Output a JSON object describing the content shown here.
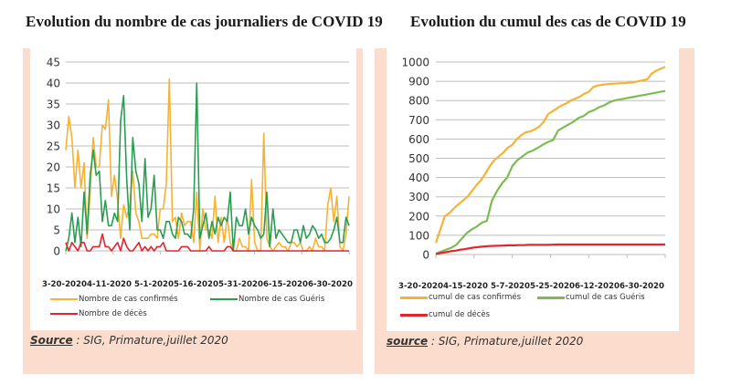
{
  "colors": {
    "confirmed": "#f5b335",
    "recovered_daily": "#2a9d53",
    "recovered_cumul": "#7dbb53",
    "deaths": "#e0262e",
    "grid": "#bdbdbd",
    "panel_bg": "#fbdccd"
  },
  "chart_data": [
    {
      "type": "line",
      "title": "Evolution du nombre de cas journaliers de COVID 19",
      "xlabel": "",
      "ylabel": "",
      "ylim": [
        0,
        45
      ],
      "yticks": [
        "0",
        "5",
        "10",
        "15",
        "20",
        "25",
        "30",
        "35",
        "40",
        "45"
      ],
      "xtick_labels": [
        "3-20-2020",
        "4-11-2020",
        "5-1-2020",
        "5-16-2020",
        "5-31-2020",
        "6-15-2020",
        "6-30-2020"
      ],
      "xtick_label_text": "3-20-20204-11-2020  5-1-20205-16-20205-31-20206-15-20206-30-2020",
      "grid": true,
      "legend_position": "bottom",
      "series": [
        {
          "name": "Nombre de cas confirmés",
          "color_key": "confirmed",
          "values": [
            24,
            32,
            27,
            15,
            24,
            15,
            21,
            3,
            14,
            27,
            20,
            20,
            30,
            29,
            36,
            13,
            18,
            12,
            3,
            11,
            8,
            11,
            19,
            9,
            7,
            3,
            3,
            3,
            4,
            4,
            3,
            10,
            10,
            16,
            41,
            7,
            8,
            3,
            9,
            6,
            7,
            7,
            2,
            14,
            0,
            10,
            5,
            5,
            3,
            13,
            2,
            8,
            2,
            8,
            2,
            0,
            0,
            3,
            1,
            1,
            0,
            17,
            2,
            0,
            0,
            28,
            3,
            1,
            0,
            1,
            2,
            1,
            1,
            0,
            2,
            2,
            1,
            2,
            0,
            0,
            1,
            0,
            3,
            1,
            1,
            0,
            11,
            15,
            7,
            13,
            1,
            0,
            4,
            13
          ],
          "extra_values_note": ""
        },
        {
          "name": "Nombre de cas Guéris",
          "color_key": "recovered_daily",
          "values": [
            0,
            3,
            9,
            2,
            8,
            1,
            14,
            4,
            18,
            24,
            18,
            19,
            7,
            12,
            6,
            6,
            9,
            7,
            31,
            37,
            17,
            5,
            27,
            19,
            16,
            7,
            22,
            8,
            10,
            18,
            5,
            5,
            3,
            7,
            7,
            4,
            3,
            8,
            7,
            4,
            4,
            3,
            10,
            40,
            3,
            6,
            9,
            3,
            7,
            4,
            8,
            6,
            8,
            7,
            14,
            0,
            8,
            6,
            6,
            10,
            4,
            8,
            6,
            5,
            3,
            4,
            14,
            1,
            10,
            3,
            5,
            4,
            3,
            2,
            2,
            5,
            5,
            2,
            6,
            3,
            4,
            6,
            5,
            3,
            4,
            2,
            2,
            3,
            5,
            8,
            2,
            2,
            8,
            6
          ]
        },
        {
          "name": "Nombre de décès",
          "color_key": "deaths",
          "values": [
            2,
            0,
            2,
            1,
            0,
            2,
            2,
            0,
            0,
            1,
            1,
            1,
            4,
            1,
            1,
            0,
            1,
            2,
            0,
            3,
            1,
            0,
            0,
            1,
            2,
            0,
            1,
            0,
            1,
            0,
            1,
            1,
            2,
            0,
            0,
            0,
            0,
            0,
            1,
            1,
            1,
            0,
            0,
            0,
            0,
            0,
            0,
            1,
            0,
            0,
            0,
            0,
            0,
            1,
            1,
            0,
            0,
            0,
            0,
            0,
            0,
            0,
            0,
            0,
            0,
            0,
            0,
            0,
            0,
            0,
            0,
            0,
            0,
            0,
            0,
            0,
            0,
            0,
            0,
            0,
            0,
            0,
            0,
            0,
            0,
            0,
            0,
            0,
            0,
            0,
            0,
            0,
            0,
            0
          ]
        }
      ]
    },
    {
      "type": "line",
      "title": "Evolution du cumul des cas de COVID 19",
      "xlabel": "",
      "ylabel": "",
      "ylim": [
        0,
        1000
      ],
      "yticks": [
        "0",
        "100",
        "200",
        "300",
        "400",
        "500",
        "600",
        "700",
        "800",
        "900",
        "1000"
      ],
      "xtick_labels": [
        "3-20-2020",
        "4-15-2020",
        "5-7-2020",
        "5-25-2020",
        "6-12-2020",
        "6-30-2020"
      ],
      "xtick_label_text": "3-20-20204-15-2020 5-7-20205-25-20206-12-20206-30-2020",
      "grid": true,
      "legend_position": "bottom",
      "series": [
        {
          "name": "cumul de cas confirmés",
          "color_key": "confirmed",
          "values": [
            60,
            130,
            200,
            215,
            240,
            260,
            280,
            300,
            330,
            360,
            385,
            420,
            460,
            490,
            510,
            530,
            555,
            570,
            600,
            620,
            635,
            640,
            650,
            665,
            690,
            730,
            745,
            760,
            775,
            785,
            800,
            810,
            820,
            835,
            845,
            870,
            878,
            882,
            885,
            887,
            888,
            890,
            890,
            893,
            895,
            900,
            905,
            910,
            940,
            955,
            965,
            975
          ]
        },
        {
          "name": "cumul de cas Guéris",
          "color_key": "recovered_cumul",
          "values": [
            5,
            15,
            25,
            35,
            50,
            80,
            110,
            130,
            145,
            165,
            175,
            280,
            330,
            370,
            400,
            460,
            490,
            510,
            530,
            540,
            555,
            570,
            585,
            595,
            645,
            660,
            675,
            690,
            710,
            720,
            740,
            750,
            765,
            775,
            790,
            800,
            805,
            810,
            815,
            820,
            825,
            830,
            835,
            840,
            845,
            850
          ]
        },
        {
          "name": "cumul de décès",
          "color_key": "deaths",
          "values": [
            2,
            8,
            12,
            17,
            20,
            25,
            28,
            33,
            37,
            40,
            42,
            44,
            45,
            46,
            47,
            48,
            48,
            49,
            49,
            50,
            50,
            50,
            50,
            50,
            51,
            52,
            52,
            52,
            52,
            52,
            52,
            52,
            52,
            52,
            52,
            52,
            52,
            52,
            52,
            52,
            52,
            52,
            52,
            52,
            52,
            52,
            52,
            52
          ]
        }
      ]
    }
  ],
  "left": {
    "title": "Evolution du nombre de cas journaliers de COVID 19",
    "legend": [
      "Nombre de cas confirmés",
      "Nombre de cas Guéris",
      "Nombre de décès"
    ],
    "source_label": "Source",
    "source_text": " : SIG, Primature,juillet 2020"
  },
  "right": {
    "title": "Evolution du cumul des cas de COVID 19",
    "legend": [
      "cumul de cas confirmés",
      "cumul de cas Guéris",
      "cumul de décès"
    ],
    "source_label": "source",
    "source_text": " : SIG, Primature,juillet 2020"
  }
}
